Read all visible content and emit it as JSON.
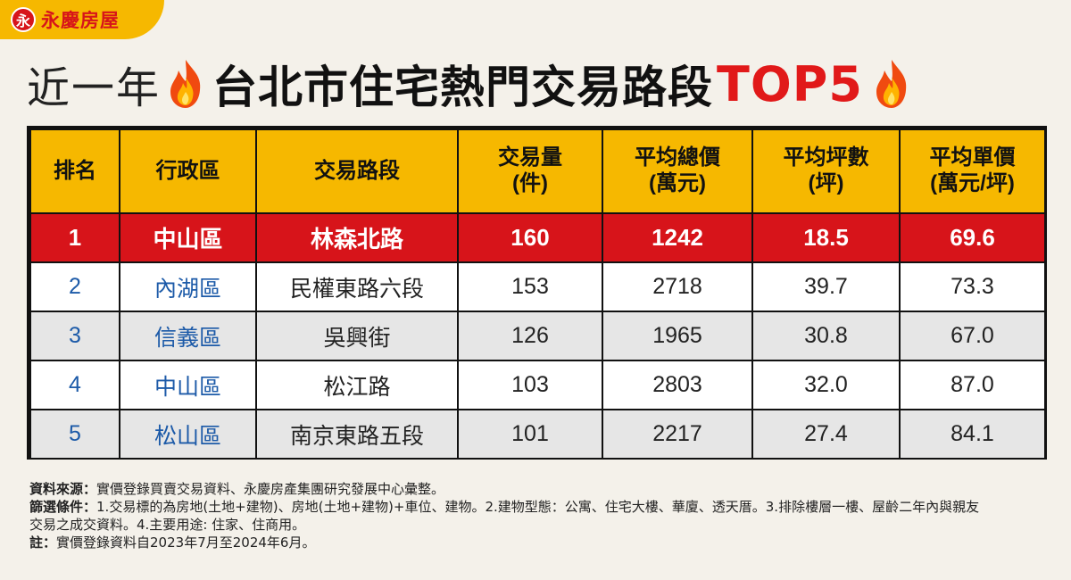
{
  "brand": {
    "logo_mark": "永",
    "name": "永慶房屋",
    "accent": "#f6b800",
    "red": "#d7141a"
  },
  "title": {
    "prefix": "近一年",
    "main": "台北市住宅熱門交易路段",
    "highlight": "TOP5",
    "icon": "fire-icon"
  },
  "table": {
    "headers": [
      {
        "l1": "排名",
        "l2": ""
      },
      {
        "l1": "行政區",
        "l2": ""
      },
      {
        "l1": "交易路段",
        "l2": ""
      },
      {
        "l1": "交易量",
        "l2": "(件)"
      },
      {
        "l1": "平均總價",
        "l2": "(萬元)"
      },
      {
        "l1": "平均坪數",
        "l2": "(坪)"
      },
      {
        "l1": "平均單價",
        "l2": "(萬元/坪)"
      }
    ],
    "rows": [
      {
        "rank": "1",
        "district": "中山區",
        "road": "林森北路",
        "volume": "160",
        "avg_total": "1242",
        "avg_ping": "18.5",
        "avg_unit": "69.6"
      },
      {
        "rank": "2",
        "district": "內湖區",
        "road": "民權東路六段",
        "volume": "153",
        "avg_total": "2718",
        "avg_ping": "39.7",
        "avg_unit": "73.3"
      },
      {
        "rank": "3",
        "district": "信義區",
        "road": "吳興街",
        "volume": "126",
        "avg_total": "1965",
        "avg_ping": "30.8",
        "avg_unit": "67.0"
      },
      {
        "rank": "4",
        "district": "中山區",
        "road": "松江路",
        "volume": "103",
        "avg_total": "2803",
        "avg_ping": "32.0",
        "avg_unit": "87.0"
      },
      {
        "rank": "5",
        "district": "松山區",
        "road": "南京東路五段",
        "volume": "101",
        "avg_total": "2217",
        "avg_ping": "27.4",
        "avg_unit": "84.1"
      }
    ]
  },
  "notes": {
    "source_label": "資料來源：",
    "source_text": "實價登錄買賣交易資料、永慶房產集團研究發展中心彙整。",
    "criteria_label": "篩選條件：",
    "criteria_text1": "1.交易標的為房地(土地+建物)、房地(土地+建物)+車位、建物。2.建物型態：公寓、住宅大樓、華廈、透天厝。3.排除樓層一樓、屋齡二年內與親友",
    "criteria_text2": "交易之成交資料。4.主要用途: 住家、住商用。",
    "note_label": "註：",
    "note_text": "實價登錄資料自2023年7月至2024年6月。"
  }
}
